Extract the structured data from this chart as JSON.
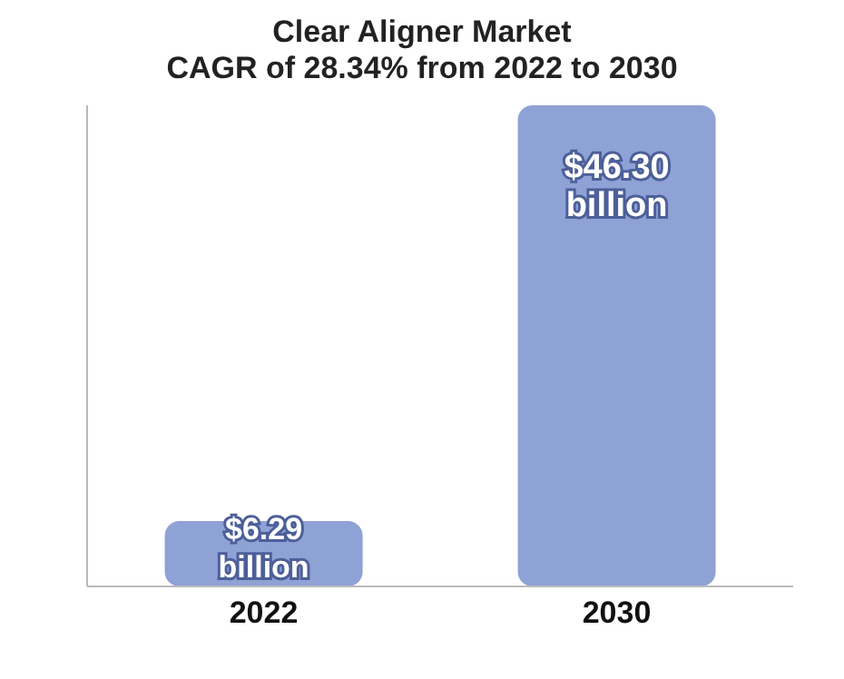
{
  "chart_data": {
    "type": "bar",
    "title": "Clear Aligner Market",
    "subtitle": "CAGR of 28.34% from 2022 to 2030",
    "categories": [
      "2022",
      "2030"
    ],
    "values": [
      6.29,
      46.3
    ],
    "value_labels": [
      "$6.29 billion",
      "$46.30 billion"
    ],
    "color": "#8fa2d6",
    "tick_labels": "x"
  }
}
